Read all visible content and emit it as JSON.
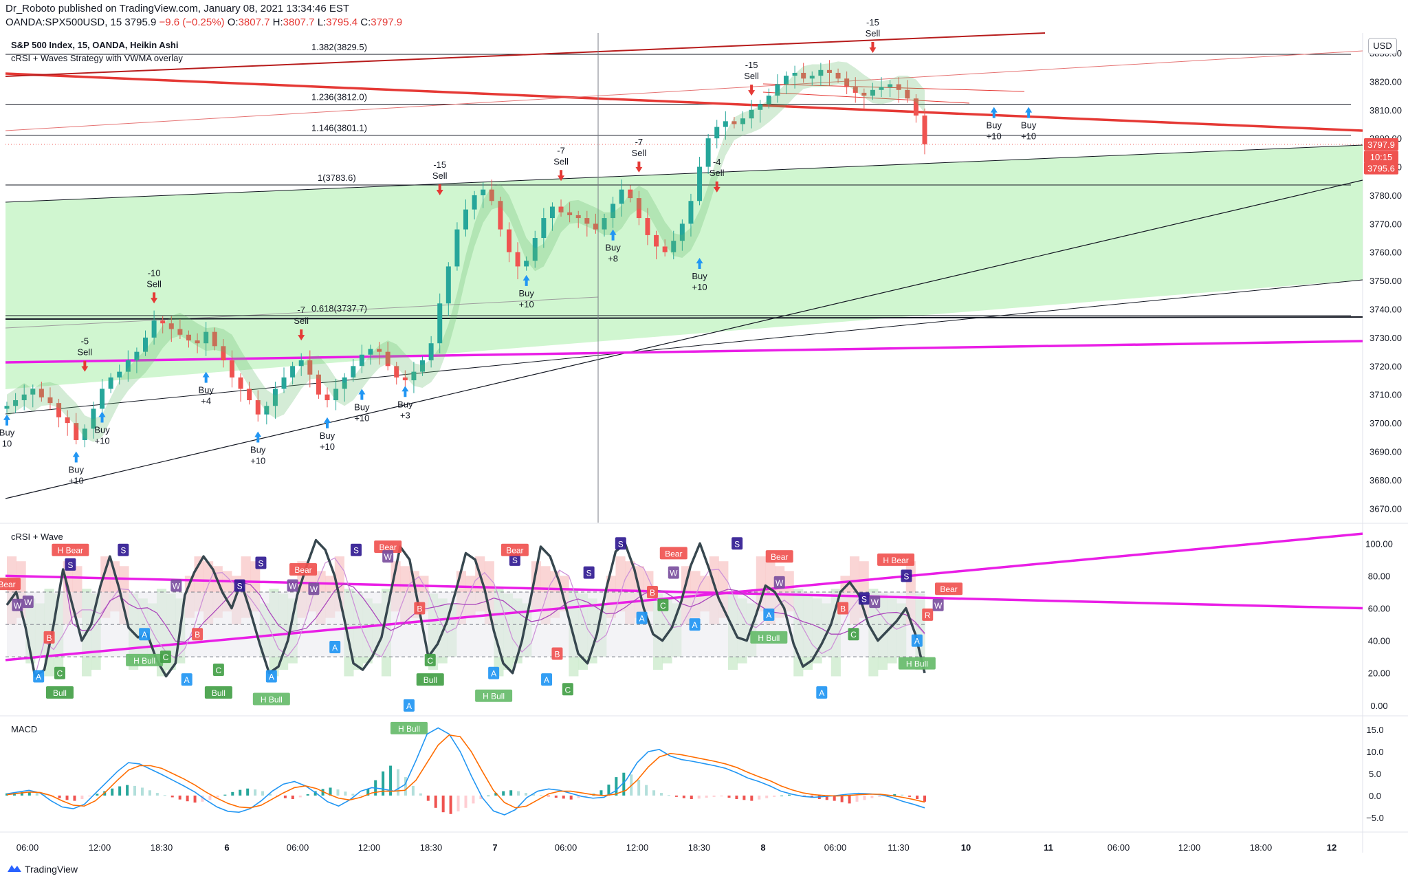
{
  "header": {
    "line1": "Dr_Roboto published on TradingView.com, January 08, 2021 13:34:46 EST",
    "symbol": "OANDA:SPX500USD, 15",
    "last": "3795.9",
    "change": "−9.6 (−0.25%)",
    "o_label": "O:",
    "o_val": "3807.7",
    "h_label": "H:",
    "h_val": "3807.7",
    "l_label": "L:",
    "l_val": "3795.4",
    "c_label": "C:",
    "c_val": "3797.9"
  },
  "legend": {
    "main_title": "S&P 500 Index, 15, OANDA, Heikin Ashi",
    "main_study": "cRSI + Waves Strategy with VWMA overlay",
    "osc_title": "cRSI + Wave",
    "macd_title": "MACD"
  },
  "currency": "USD",
  "price_tags": [
    {
      "text": "3797.9",
      "y": 3797.9,
      "color": "#ef5350"
    },
    {
      "text": "10:15",
      "y": 3793.5,
      "color": "#ef5350"
    },
    {
      "text": "3795.6",
      "y": 3789.5,
      "color": "#ef5350"
    }
  ],
  "footer": {
    "brand": "TradingView"
  },
  "colors": {
    "up": "#26a69a",
    "down": "#ef5350",
    "buy": "#2196f3",
    "sell": "#e53935",
    "fill": "#c8f5c8",
    "magenta": "#e91ee6",
    "darkred": "#b71c1c"
  },
  "chart_data": [
    {
      "type": "candlestick",
      "title": "S&P 500 Index, 15, OANDA, Heikin Ashi",
      "ylim": [
        3665,
        3837
      ],
      "y_ticks": [
        3670,
        3680,
        3690,
        3700,
        3710,
        3720,
        3730,
        3740,
        3750,
        3760,
        3770,
        3780,
        3790,
        3800,
        3810,
        3820,
        3830
      ],
      "x_ticks": [
        "06:00",
        "12:00",
        "18:30",
        "6",
        "06:00",
        "12:00",
        "18:30",
        "7",
        "06:00",
        "12:00",
        "18:30",
        "8",
        "06:00",
        "11:30",
        "10",
        "11",
        "06:00",
        "12:00",
        "18:00",
        "12"
      ],
      "close_path": [
        3706,
        3708,
        3710,
        3712,
        3709,
        3707,
        3702,
        3700,
        3694,
        3698,
        3705,
        3712,
        3716,
        3718,
        3722,
        3725,
        3730,
        3736,
        3735,
        3733,
        3731,
        3729,
        3728,
        3732,
        3727,
        3722,
        3716,
        3712,
        3708,
        3703,
        3706,
        3712,
        3716,
        3720,
        3722,
        3717,
        3710,
        3708,
        3712,
        3716,
        3720,
        3724,
        3726,
        3725,
        3720,
        3716,
        3715,
        3718,
        3722,
        3728,
        3742,
        3755,
        3768,
        3775,
        3780,
        3782,
        3778,
        3768,
        3760,
        3755,
        3757,
        3765,
        3772,
        3776,
        3774,
        3773,
        3772,
        3770,
        3768,
        3772,
        3777,
        3782,
        3779,
        3772,
        3766,
        3762,
        3760,
        3764,
        3770,
        3778,
        3790,
        3800,
        3804,
        3806,
        3805,
        3807,
        3810,
        3812,
        3815,
        3819,
        3822,
        3823,
        3821,
        3822,
        3824,
        3823,
        3821,
        3818,
        3816,
        3815,
        3817,
        3818,
        3819,
        3817,
        3814,
        3808,
        3797.9
      ],
      "fib_levels": [
        {
          "label": "1.382(3829.5)",
          "y": 3829.5
        },
        {
          "label": "1.236(3812.0)",
          "y": 3812.0
        },
        {
          "label": "1.146(3801.1)",
          "y": 3801.1
        },
        {
          "label": "1(3783.6)",
          "y": 3783.6
        },
        {
          "label": "0.618(3737.7)",
          "y": 3737.7
        }
      ],
      "signals": [
        {
          "kind": "buy",
          "label": "Buy",
          "value": "10",
          "i": 0,
          "price": 3703
        },
        {
          "kind": "buy",
          "label": "Buy",
          "value": "+10",
          "i": 8,
          "price": 3690
        },
        {
          "kind": "sell",
          "label": "Sell",
          "value": "-5",
          "i": 9,
          "price": 3718
        },
        {
          "kind": "buy",
          "label": "Buy",
          "value": "+10",
          "i": 11,
          "price": 3704
        },
        {
          "kind": "sell",
          "label": "Sell",
          "value": "-10",
          "i": 17,
          "price": 3742
        },
        {
          "kind": "buy",
          "label": "Buy",
          "value": "+4",
          "i": 23,
          "price": 3718
        },
        {
          "kind": "buy",
          "label": "Buy",
          "value": "+10",
          "i": 29,
          "price": 3697
        },
        {
          "kind": "sell",
          "label": "Sell",
          "value": "-7",
          "i": 34,
          "price": 3729
        },
        {
          "kind": "buy",
          "label": "Buy",
          "value": "+10",
          "i": 37,
          "price": 3702
        },
        {
          "kind": "buy",
          "label": "Buy",
          "value": "+10",
          "i": 41,
          "price": 3712
        },
        {
          "kind": "buy",
          "label": "Buy",
          "value": "+3",
          "i": 46,
          "price": 3713
        },
        {
          "kind": "sell",
          "label": "Sell",
          "value": "-15",
          "i": 50,
          "price": 3780
        },
        {
          "kind": "buy",
          "label": "Buy",
          "value": "+10",
          "i": 60,
          "price": 3752
        },
        {
          "kind": "sell",
          "label": "Sell",
          "value": "-7",
          "i": 64,
          "price": 3785
        },
        {
          "kind": "buy",
          "label": "Buy",
          "value": "+8",
          "i": 70,
          "price": 3768
        },
        {
          "kind": "sell",
          "label": "Sell",
          "value": "-7",
          "i": 73,
          "price": 3788
        },
        {
          "kind": "buy",
          "label": "Buy",
          "value": "+10",
          "i": 80,
          "price": 3758
        },
        {
          "kind": "sell",
          "label": "Sell",
          "value": "-4",
          "i": 82,
          "price": 3781
        },
        {
          "kind": "sell",
          "label": "Sell",
          "value": "-15",
          "i": 86,
          "price": 3815
        },
        {
          "kind": "sell",
          "label": "Sell",
          "value": "-15",
          "i": 100,
          "price": 3830
        },
        {
          "kind": "buy",
          "label": "Buy",
          "value": "+10",
          "i": 114,
          "price": 3811
        },
        {
          "kind": "buy",
          "label": "Buy",
          "value": "+10",
          "i": 118,
          "price": 3811
        }
      ]
    },
    {
      "type": "line",
      "title": "cRSI + Wave",
      "ylim": [
        -6,
        112
      ],
      "y_ticks": [
        0,
        20,
        40,
        60,
        80,
        100
      ],
      "bands": [
        30,
        50,
        70
      ],
      "crsi_path": [
        62,
        70,
        48,
        18,
        22,
        50,
        84,
        62,
        40,
        50,
        74,
        92,
        72,
        48,
        42,
        44,
        28,
        18,
        26,
        68,
        82,
        92,
        84,
        70,
        60,
        76,
        58,
        38,
        20,
        24,
        40,
        68,
        86,
        102,
        96,
        80,
        54,
        26,
        22,
        30,
        42,
        70,
        98,
        90,
        60,
        30,
        38,
        52,
        72,
        94,
        90,
        72,
        46,
        26,
        20,
        40,
        68,
        98,
        92,
        76,
        54,
        32,
        26,
        44,
        72,
        95,
        100,
        84,
        60,
        44,
        40,
        48,
        64,
        86,
        100,
        84,
        66,
        54,
        42,
        40,
        56,
        74,
        70,
        60,
        38,
        24,
        28,
        38,
        50,
        70,
        76,
        68,
        50,
        40,
        46,
        52,
        60,
        44,
        20
      ],
      "markers": [
        {
          "label": "Bear",
          "type": "bear",
          "i": 0,
          "v": 75
        },
        {
          "label": "W",
          "type": "w",
          "i": 1,
          "v": 62
        },
        {
          "label": "W",
          "type": "w",
          "i": 2,
          "v": 64
        },
        {
          "label": "A",
          "type": "a",
          "i": 3,
          "v": 18
        },
        {
          "label": "B",
          "type": "b",
          "i": 4,
          "v": 42
        },
        {
          "label": "C",
          "type": "c",
          "i": 5,
          "v": 20
        },
        {
          "label": "Bull",
          "type": "bull",
          "i": 5,
          "v": 8
        },
        {
          "label": "H Bear",
          "type": "bear",
          "i": 6,
          "v": 96
        },
        {
          "label": "S",
          "type": "s",
          "i": 6,
          "v": 87
        },
        {
          "label": "S",
          "type": "s",
          "i": 11,
          "v": 96
        },
        {
          "label": "A",
          "type": "a",
          "i": 13,
          "v": 44
        },
        {
          "label": "H Bull",
          "type": "hbull",
          "i": 13,
          "v": 28
        },
        {
          "label": "C",
          "type": "c",
          "i": 15,
          "v": 30
        },
        {
          "label": "W",
          "type": "w",
          "i": 16,
          "v": 74
        },
        {
          "label": "B",
          "type": "b",
          "i": 18,
          "v": 44
        },
        {
          "label": "A",
          "type": "a",
          "i": 17,
          "v": 16
        },
        {
          "label": "C",
          "type": "c",
          "i": 20,
          "v": 22
        },
        {
          "label": "Bull",
          "type": "bull",
          "i": 20,
          "v": 8
        },
        {
          "label": "S",
          "type": "s",
          "i": 22,
          "v": 74
        },
        {
          "label": "S",
          "type": "s",
          "i": 24,
          "v": 88
        },
        {
          "label": "A",
          "type": "a",
          "i": 25,
          "v": 18
        },
        {
          "label": "H Bull",
          "type": "hbull",
          "i": 25,
          "v": 4
        },
        {
          "label": "W",
          "type": "w",
          "i": 27,
          "v": 74
        },
        {
          "label": "Bear",
          "type": "bear",
          "i": 28,
          "v": 84
        },
        {
          "label": "W",
          "type": "w",
          "i": 29,
          "v": 72
        },
        {
          "label": "A",
          "type": "a",
          "i": 31,
          "v": 36
        },
        {
          "label": "S",
          "type": "s",
          "i": 33,
          "v": 96
        },
        {
          "label": "Bear",
          "type": "bear",
          "i": 36,
          "v": 98
        },
        {
          "label": "W",
          "type": "w",
          "i": 36,
          "v": 92
        },
        {
          "label": "B",
          "type": "b",
          "i": 39,
          "v": 60
        },
        {
          "label": "A",
          "type": "a",
          "i": 38,
          "v": 0
        },
        {
          "label": "H Bull",
          "type": "hbull",
          "i": 38,
          "v": -14
        },
        {
          "label": "C",
          "type": "c",
          "i": 40,
          "v": 28
        },
        {
          "label": "Bull",
          "type": "bull",
          "i": 40,
          "v": 16
        },
        {
          "label": "A",
          "type": "a",
          "i": 46,
          "v": 20
        },
        {
          "label": "H Bull",
          "type": "hbull",
          "i": 46,
          "v": 6
        },
        {
          "label": "S",
          "type": "s",
          "i": 48,
          "v": 90
        },
        {
          "label": "Bear",
          "type": "bear",
          "i": 48,
          "v": 96
        },
        {
          "label": "A",
          "type": "a",
          "i": 51,
          "v": 16
        },
        {
          "label": "B",
          "type": "b",
          "i": 52,
          "v": 32
        },
        {
          "label": "C",
          "type": "c",
          "i": 53,
          "v": 10
        },
        {
          "label": "S",
          "type": "s",
          "i": 55,
          "v": 82
        },
        {
          "label": "S",
          "type": "s",
          "i": 58,
          "v": 100
        },
        {
          "label": "A",
          "type": "a",
          "i": 60,
          "v": 54
        },
        {
          "label": "B",
          "type": "b",
          "i": 61,
          "v": 70
        },
        {
          "label": "C",
          "type": "c",
          "i": 62,
          "v": 62
        },
        {
          "label": "W",
          "type": "w",
          "i": 63,
          "v": 82
        },
        {
          "label": "Bear",
          "type": "bear",
          "i": 63,
          "v": 94
        },
        {
          "label": "A",
          "type": "a",
          "i": 65,
          "v": 50
        },
        {
          "label": "S",
          "type": "s",
          "i": 69,
          "v": 100
        },
        {
          "label": "A",
          "type": "a",
          "i": 72,
          "v": 56
        },
        {
          "label": "H Bull",
          "type": "hbull",
          "i": 72,
          "v": 42
        },
        {
          "label": "Bear",
          "type": "bear",
          "i": 73,
          "v": 92
        },
        {
          "label": "W",
          "type": "w",
          "i": 73,
          "v": 76
        },
        {
          "label": "A",
          "type": "a",
          "i": 77,
          "v": 8
        },
        {
          "label": "B",
          "type": "b",
          "i": 79,
          "v": 60
        },
        {
          "label": "C",
          "type": "c",
          "i": 80,
          "v": 44
        },
        {
          "label": "S",
          "type": "s",
          "i": 81,
          "v": 66
        },
        {
          "label": "W",
          "type": "w",
          "i": 82,
          "v": 64
        },
        {
          "label": "H Bear",
          "type": "bear",
          "i": 84,
          "v": 90
        },
        {
          "label": "S",
          "type": "s",
          "i": 85,
          "v": 80
        },
        {
          "label": "A",
          "type": "a",
          "i": 86,
          "v": 40
        },
        {
          "label": "R",
          "type": "b",
          "i": 87,
          "v": 56
        },
        {
          "label": "H Bull",
          "type": "hbull",
          "i": 86,
          "v": 26
        },
        {
          "label": "W",
          "type": "w",
          "i": 88,
          "v": 62
        },
        {
          "label": "Bear",
          "type": "bear",
          "i": 89,
          "v": 72
        }
      ]
    },
    {
      "type": "bar",
      "title": "MACD",
      "ylim": [
        -8,
        18
      ],
      "y_ticks": [
        -5.0,
        0.0,
        5.0,
        10.0,
        15.0
      ],
      "hist": [
        0.5,
        0.6,
        0.8,
        0.9,
        0.7,
        0.4,
        -0.2,
        -0.6,
        -1.0,
        -1.2,
        -0.8,
        -0.2,
        0.4,
        1.0,
        1.6,
        2.1,
        2.4,
        2.2,
        1.8,
        1.2,
        0.6,
        0.1,
        -0.4,
        -0.9,
        -1.3,
        -1.6,
        -1.4,
        -1.0,
        -0.4,
        0.2,
        0.8,
        1.3,
        1.6,
        1.4,
        1.0,
        0.4,
        -0.2,
        -0.6,
        -0.8,
        -0.4,
        0.3,
        1.0,
        1.5,
        1.8,
        1.4,
        0.9,
        0.4,
        0.0,
        1.5,
        3.5,
        5.5,
        6.8,
        6.0,
        4.2,
        2.2,
        0.5,
        -1.2,
        -2.8,
        -3.8,
        -4.2,
        -3.6,
        -2.8,
        -1.8,
        -0.8,
        0.0,
        0.6,
        1.0,
        1.2,
        1.0,
        0.6,
        0.3,
        0.1,
        -0.2,
        -0.5,
        -0.7,
        -0.9,
        -0.6,
        -0.2,
        0.4,
        1.2,
        2.5,
        4.2,
        5.2,
        4.8,
        3.6,
        2.4,
        1.2,
        0.6,
        0.1,
        -0.3,
        -0.6,
        -0.8,
        -0.7,
        -0.5,
        -0.3,
        -0.2,
        -0.5,
        -0.8,
        -1.0,
        -1.2,
        -0.9,
        -0.6,
        -0.3,
        0.0,
        0.2,
        0.1,
        -0.2,
        -0.5,
        -0.8,
        -1.0,
        -1.2,
        -1.5,
        -1.8,
        -1.4,
        -1.0,
        -0.6,
        -0.3,
        0.0,
        0.3,
        0.2,
        -0.3,
        -0.8,
        -1.4
      ],
      "macd": [
        0.4,
        0.8,
        1.2,
        0.6,
        -1.2,
        -2.6,
        -3.0,
        -2.0,
        0.5,
        3.0,
        5.5,
        7.5,
        7.2,
        6.0,
        4.8,
        3.5,
        2.2,
        0.8,
        -1.0,
        -2.6,
        -3.6,
        -3.8,
        -3.0,
        -1.2,
        1.0,
        2.6,
        3.2,
        2.2,
        0.5,
        -1.4,
        -2.4,
        -1.0,
        1.0,
        1.8,
        1.5,
        1.0,
        2.5,
        8.0,
        14.0,
        15.4,
        14.0,
        10.0,
        4.5,
        -0.5,
        -3.5,
        -4.4,
        -3.2,
        -0.5,
        1.0,
        1.5,
        1.2,
        0.5,
        -0.2,
        -0.6,
        -0.4,
        1.0,
        3.5,
        7.5,
        10.0,
        10.5,
        9.0,
        8.2,
        7.8,
        7.3,
        6.8,
        6.2,
        5.2,
        4.0,
        3.2,
        2.2,
        1.0,
        0.3,
        -0.2,
        -0.4,
        -0.2,
        0.0,
        0.3,
        0.5,
        0.4,
        0.2,
        -0.4,
        -1.3,
        -2.0,
        -2.8
      ],
      "signal": [
        0.2,
        0.5,
        0.8,
        0.7,
        0.0,
        -1.2,
        -2.2,
        -2.4,
        -1.2,
        1.0,
        3.5,
        5.8,
        6.8,
        6.8,
        6.2,
        5.0,
        3.8,
        2.4,
        0.8,
        -0.6,
        -1.8,
        -2.6,
        -2.8,
        -2.2,
        -0.8,
        0.6,
        1.8,
        2.2,
        1.6,
        0.4,
        -0.6,
        -1.0,
        -0.4,
        0.6,
        1.0,
        1.0,
        1.2,
        3.5,
        7.5,
        11.5,
        13.8,
        13.4,
        10.0,
        5.5,
        1.2,
        -1.6,
        -2.8,
        -2.4,
        -1.0,
        0.4,
        1.0,
        1.0,
        0.6,
        0.2,
        0.0,
        0.3,
        1.2,
        3.5,
        6.5,
        8.8,
        9.6,
        9.3,
        8.8,
        8.3,
        7.8,
        7.2,
        6.4,
        5.3,
        4.3,
        3.4,
        2.2,
        1.3,
        0.6,
        0.2,
        0.0,
        -0.1,
        0.0,
        0.2,
        0.3,
        0.3,
        0.0,
        -0.4,
        -0.9,
        -1.5
      ]
    }
  ]
}
